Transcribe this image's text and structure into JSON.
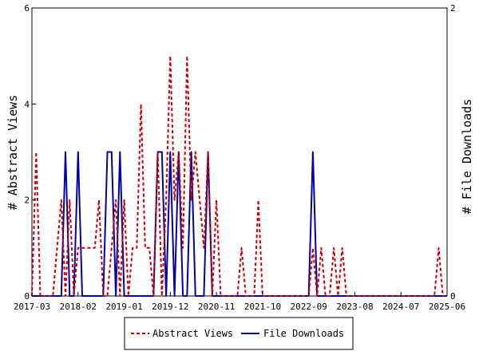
{
  "chart_data": {
    "type": "line",
    "title": "",
    "xlabel": "",
    "ylabel": "# Abstract Views",
    "y2label": "# File Downloads",
    "x_ticks": [
      "2017-03",
      "2018-02",
      "2019-01",
      "2019-12",
      "2020-11",
      "2021-10",
      "2022-09",
      "2023-08",
      "2024-07",
      "2025-06"
    ],
    "ylim": [
      0,
      6
    ],
    "y_ticks": [
      "0",
      "2",
      "4",
      "6"
    ],
    "y2lim": [
      0,
      2
    ],
    "y2_ticks": [
      "0",
      "2"
    ],
    "legend_position": "bottom",
    "grid": false,
    "series": [
      {
        "name": "Abstract Views",
        "axis": "left",
        "color": "#cc0000",
        "style": "dashed",
        "points": [
          [
            "2017-03",
            0
          ],
          [
            "2017-04",
            3
          ],
          [
            "2017-05",
            0
          ],
          [
            "2017-06",
            0
          ],
          [
            "2017-07",
            0
          ],
          [
            "2017-08",
            0
          ],
          [
            "2017-09",
            1
          ],
          [
            "2017-10",
            2
          ],
          [
            "2017-11",
            0
          ],
          [
            "2017-12",
            2
          ],
          [
            "2018-01",
            0
          ],
          [
            "2018-02",
            1
          ],
          [
            "2018-03",
            1
          ],
          [
            "2018-04",
            1
          ],
          [
            "2018-05",
            1
          ],
          [
            "2018-06",
            1
          ],
          [
            "2018-07",
            2
          ],
          [
            "2018-08",
            0
          ],
          [
            "2018-09",
            0
          ],
          [
            "2018-10",
            1
          ],
          [
            "2018-11",
            2
          ],
          [
            "2018-12",
            0
          ],
          [
            "2019-01",
            2
          ],
          [
            "2019-02",
            0
          ],
          [
            "2019-03",
            1
          ],
          [
            "2019-04",
            1
          ],
          [
            "2019-05",
            4
          ],
          [
            "2019-06",
            1
          ],
          [
            "2019-07",
            1
          ],
          [
            "2019-08",
            0
          ],
          [
            "2019-09",
            3
          ],
          [
            "2019-10",
            0
          ],
          [
            "2019-11",
            2
          ],
          [
            "2019-12",
            5
          ],
          [
            "2020-01",
            2
          ],
          [
            "2020-02",
            3
          ],
          [
            "2020-03",
            1
          ],
          [
            "2020-04",
            5
          ],
          [
            "2020-05",
            2
          ],
          [
            "2020-06",
            3
          ],
          [
            "2020-07",
            2
          ],
          [
            "2020-08",
            1
          ],
          [
            "2020-09",
            3
          ],
          [
            "2020-10",
            0
          ],
          [
            "2020-11",
            2
          ],
          [
            "2020-12",
            0
          ],
          [
            "2021-01",
            0
          ],
          [
            "2021-02",
            0
          ],
          [
            "2021-03",
            0
          ],
          [
            "2021-04",
            0
          ],
          [
            "2021-05",
            1
          ],
          [
            "2021-06",
            0
          ],
          [
            "2021-07",
            0
          ],
          [
            "2021-08",
            0
          ],
          [
            "2021-09",
            2
          ],
          [
            "2021-10",
            0
          ],
          [
            "2021-11",
            0
          ],
          [
            "2021-12",
            0
          ],
          [
            "2022-01",
            0
          ],
          [
            "2022-02",
            0
          ],
          [
            "2022-03",
            0
          ],
          [
            "2022-04",
            0
          ],
          [
            "2022-05",
            0
          ],
          [
            "2022-06",
            0
          ],
          [
            "2022-07",
            0
          ],
          [
            "2022-08",
            0
          ],
          [
            "2022-09",
            0
          ],
          [
            "2022-10",
            1
          ],
          [
            "2022-11",
            0
          ],
          [
            "2022-12",
            1
          ],
          [
            "2023-01",
            0
          ],
          [
            "2023-02",
            0
          ],
          [
            "2023-03",
            1
          ],
          [
            "2023-04",
            0
          ],
          [
            "2023-05",
            1
          ],
          [
            "2023-06",
            0
          ],
          [
            "2023-07",
            0
          ],
          [
            "2023-08",
            0
          ],
          [
            "2023-09",
            0
          ],
          [
            "2023-10",
            0
          ],
          [
            "2023-11",
            0
          ],
          [
            "2023-12",
            0
          ],
          [
            "2024-01",
            0
          ],
          [
            "2024-02",
            0
          ],
          [
            "2024-03",
            0
          ],
          [
            "2024-04",
            0
          ],
          [
            "2024-05",
            0
          ],
          [
            "2024-06",
            0
          ],
          [
            "2024-07",
            0
          ],
          [
            "2024-08",
            0
          ],
          [
            "2024-09",
            0
          ],
          [
            "2024-10",
            0
          ],
          [
            "2024-11",
            0
          ],
          [
            "2024-12",
            0
          ],
          [
            "2025-01",
            0
          ],
          [
            "2025-02",
            0
          ],
          [
            "2025-03",
            0
          ],
          [
            "2025-04",
            1
          ],
          [
            "2025-05",
            0
          ],
          [
            "2025-06",
            0
          ]
        ]
      },
      {
        "name": "File Downloads",
        "axis": "right",
        "color": "#0000aa",
        "style": "solid",
        "points": [
          [
            "2017-03",
            0
          ],
          [
            "2017-04",
            0
          ],
          [
            "2017-05",
            0
          ],
          [
            "2017-06",
            0
          ],
          [
            "2017-07",
            0
          ],
          [
            "2017-08",
            0
          ],
          [
            "2017-09",
            0
          ],
          [
            "2017-10",
            0
          ],
          [
            "2017-11",
            1
          ],
          [
            "2017-12",
            0
          ],
          [
            "2018-01",
            0
          ],
          [
            "2018-02",
            1
          ],
          [
            "2018-03",
            0
          ],
          [
            "2018-04",
            0
          ],
          [
            "2018-05",
            0
          ],
          [
            "2018-06",
            0
          ],
          [
            "2018-07",
            0
          ],
          [
            "2018-08",
            0
          ],
          [
            "2018-09",
            1
          ],
          [
            "2018-10",
            1
          ],
          [
            "2018-11",
            0
          ],
          [
            "2018-12",
            1
          ],
          [
            "2019-01",
            0
          ],
          [
            "2019-02",
            0
          ],
          [
            "2019-03",
            0
          ],
          [
            "2019-04",
            0
          ],
          [
            "2019-05",
            0
          ],
          [
            "2019-06",
            0
          ],
          [
            "2019-07",
            0
          ],
          [
            "2019-08",
            0
          ],
          [
            "2019-09",
            1
          ],
          [
            "2019-10",
            1
          ],
          [
            "2019-11",
            0
          ],
          [
            "2019-12",
            1
          ],
          [
            "2020-01",
            0
          ],
          [
            "2020-02",
            1
          ],
          [
            "2020-03",
            0
          ],
          [
            "2020-04",
            0
          ],
          [
            "2020-05",
            1
          ],
          [
            "2020-06",
            0
          ],
          [
            "2020-07",
            0
          ],
          [
            "2020-08",
            0
          ],
          [
            "2020-09",
            1
          ],
          [
            "2020-10",
            0
          ],
          [
            "2020-11",
            0
          ],
          [
            "2020-12",
            0
          ],
          [
            "2021-01",
            0
          ],
          [
            "2021-02",
            0
          ],
          [
            "2021-03",
            0
          ],
          [
            "2021-04",
            0
          ],
          [
            "2021-05",
            0
          ],
          [
            "2021-06",
            0
          ],
          [
            "2021-07",
            0
          ],
          [
            "2021-08",
            0
          ],
          [
            "2021-09",
            0
          ],
          [
            "2021-10",
            0
          ],
          [
            "2021-11",
            0
          ],
          [
            "2021-12",
            0
          ],
          [
            "2022-01",
            0
          ],
          [
            "2022-02",
            0
          ],
          [
            "2022-03",
            0
          ],
          [
            "2022-04",
            0
          ],
          [
            "2022-05",
            0
          ],
          [
            "2022-06",
            0
          ],
          [
            "2022-07",
            0
          ],
          [
            "2022-08",
            0
          ],
          [
            "2022-09",
            0
          ],
          [
            "2022-10",
            1
          ],
          [
            "2022-11",
            0
          ],
          [
            "2022-12",
            0
          ],
          [
            "2023-01",
            0
          ],
          [
            "2023-02",
            0
          ],
          [
            "2023-03",
            0
          ],
          [
            "2023-04",
            0
          ],
          [
            "2023-05",
            0
          ],
          [
            "2023-06",
            0
          ],
          [
            "2023-07",
            0
          ],
          [
            "2023-08",
            0
          ],
          [
            "2023-09",
            0
          ],
          [
            "2023-10",
            0
          ],
          [
            "2023-11",
            0
          ],
          [
            "2023-12",
            0
          ],
          [
            "2024-01",
            0
          ],
          [
            "2024-02",
            0
          ],
          [
            "2024-03",
            0
          ],
          [
            "2024-04",
            0
          ],
          [
            "2024-05",
            0
          ],
          [
            "2024-06",
            0
          ],
          [
            "2024-07",
            0
          ],
          [
            "2024-08",
            0
          ],
          [
            "2024-09",
            0
          ],
          [
            "2024-10",
            0
          ],
          [
            "2024-11",
            0
          ],
          [
            "2024-12",
            0
          ],
          [
            "2025-01",
            0
          ],
          [
            "2025-02",
            0
          ],
          [
            "2025-03",
            0
          ],
          [
            "2025-04",
            0
          ],
          [
            "2025-05",
            0
          ],
          [
            "2025-06",
            0
          ]
        ]
      }
    ]
  }
}
